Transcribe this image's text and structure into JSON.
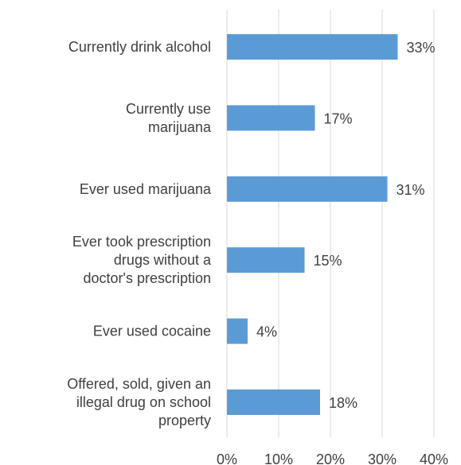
{
  "chart_data": {
    "type": "bar",
    "orientation": "horizontal",
    "title": "",
    "xlabel": "",
    "ylabel": "",
    "categories": [
      [
        "Currently drink alcohol"
      ],
      [
        "Currently use",
        "marijuana"
      ],
      [
        "Ever used marijuana"
      ],
      [
        "Ever took prescription",
        "drugs without a",
        "doctor's prescription"
      ],
      [
        "Ever used cocaine"
      ],
      [
        "Offered, sold, given an",
        "illegal drug on school",
        "property"
      ]
    ],
    "values": [
      33,
      17,
      31,
      15,
      4,
      18
    ],
    "data_labels": [
      "33%",
      "17%",
      "31%",
      "15%",
      "4%",
      "18%"
    ],
    "xlim": [
      0,
      40
    ],
    "x_ticks": [
      0,
      10,
      20,
      30,
      40
    ],
    "x_tick_labels": [
      "0%",
      "10%",
      "20%",
      "30%",
      "40%"
    ],
    "grid": "vertical",
    "legend": "none",
    "colors": {
      "bar": "#5b9bd5",
      "grid": "#d9d9d9",
      "text": "#404040"
    }
  }
}
